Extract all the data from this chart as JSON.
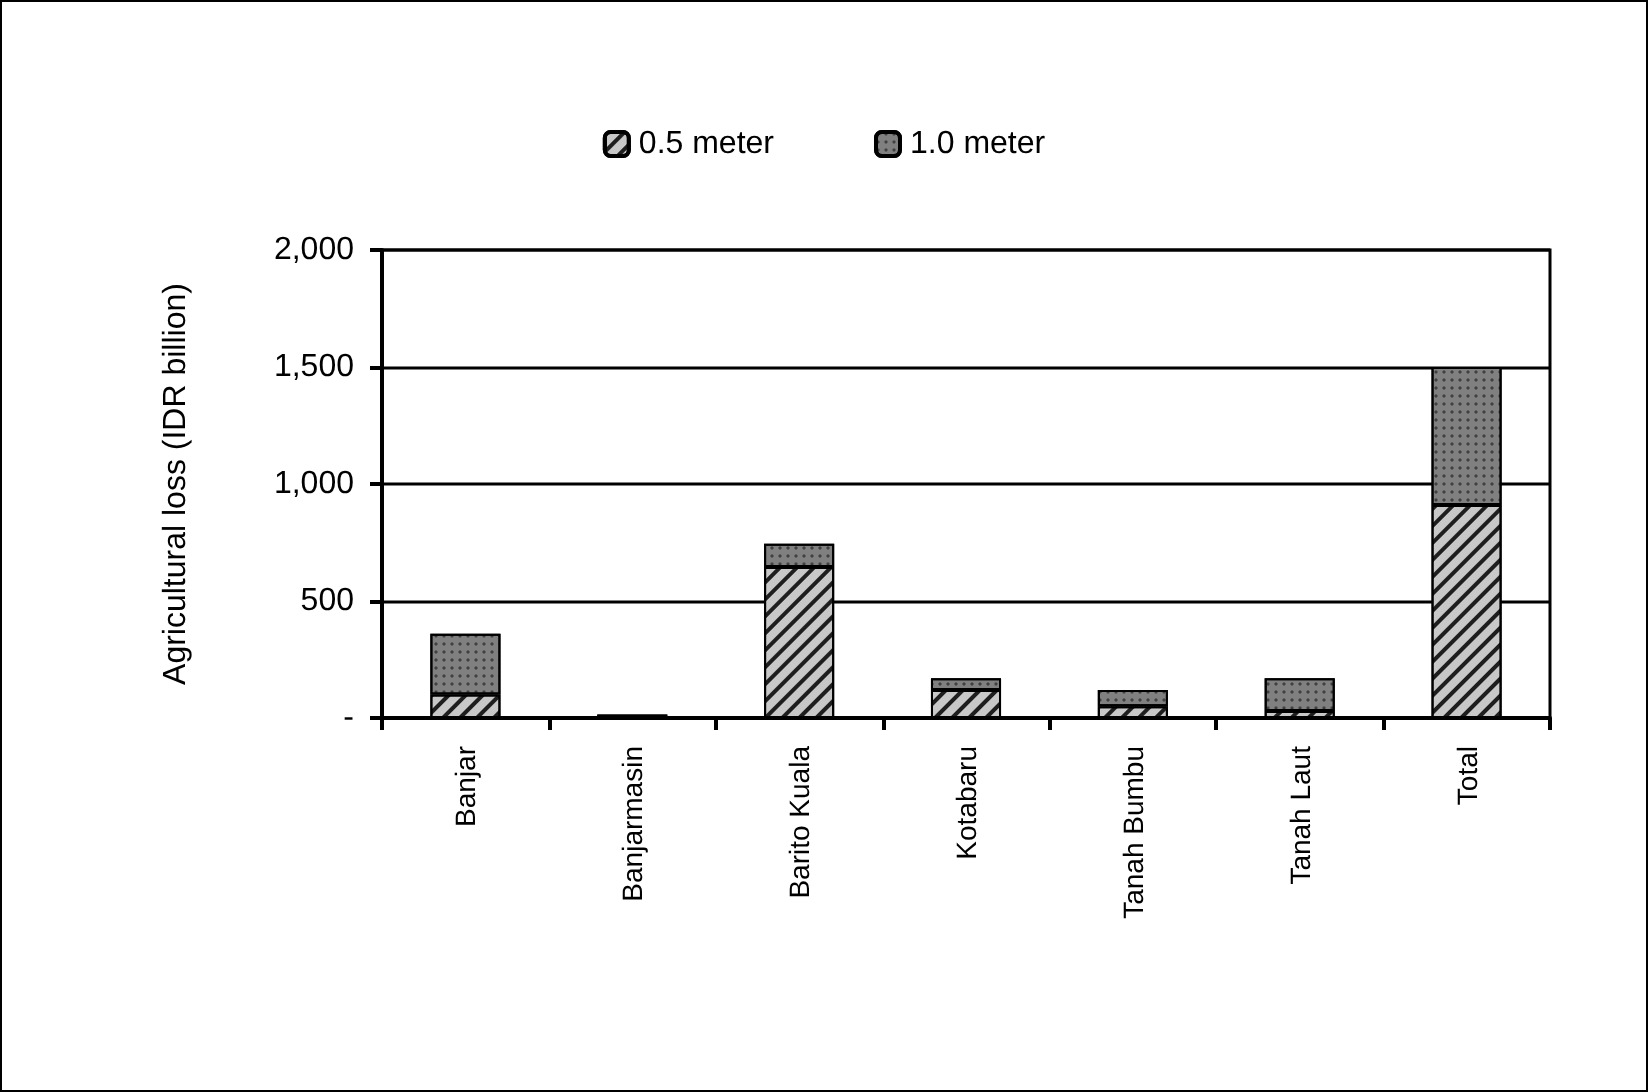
{
  "chart_data": {
    "type": "bar",
    "ylabel": "Agricultural loss (IDR billion)",
    "categories": [
      "Banjar",
      "Banjarmasin",
      "Barito Kuala",
      "Kotabaru",
      "Tanah Bumbu",
      "Tanah Laut",
      "Total"
    ],
    "series": [
      {
        "name": "0.5 meter",
        "color": "#c8c8c8",
        "values": [
          100,
          5,
          645,
          120,
          50,
          30,
          910
        ]
      },
      {
        "name": "1.0 meter",
        "color": "#808080",
        "values": [
          260,
          10,
          100,
          50,
          70,
          140,
          590
        ]
      }
    ],
    "stacked": true,
    "ylim": [
      0,
      2000
    ],
    "yticks": [
      {
        "value": 0,
        "label": "-"
      },
      500,
      {
        "value": 1000,
        "label": "1,000"
      },
      {
        "value": 1500,
        "label": "1,500"
      },
      {
        "value": 2000,
        "label": "2,000"
      }
    ],
    "grid": "y",
    "legend": "top"
  }
}
